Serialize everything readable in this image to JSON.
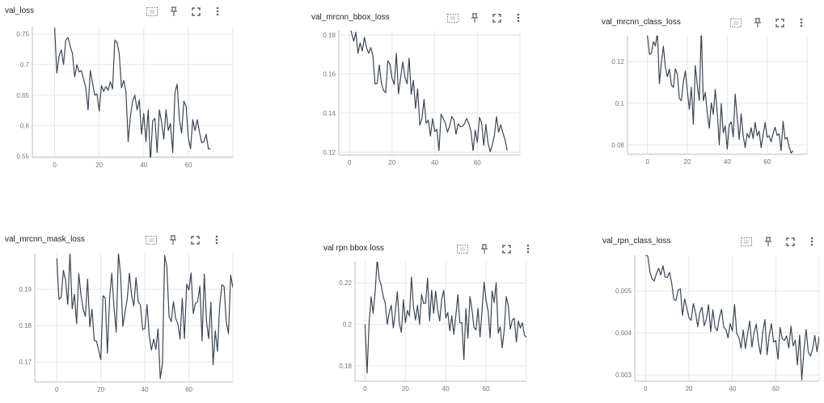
{
  "ui": {
    "line_color": "#3a4657",
    "grid_color": "#e6e6e6",
    "axis_color": "#bdbdbd",
    "tool_icons": [
      "data-selection-icon",
      "pin-icon",
      "fullscreen-icon",
      "more-vert-icon"
    ]
  },
  "chart_data": [
    {
      "type": "line",
      "title": "val_loss",
      "xlim": [
        -10,
        80
      ],
      "ylim": [
        0.548,
        0.762
      ],
      "x_ticks": [
        0,
        20,
        40,
        60
      ],
      "y_ticks": [
        0.55,
        0.6,
        0.65,
        0.7,
        0.75
      ],
      "x_tick_labels": [
        "0",
        "20",
        "40",
        "60"
      ],
      "y_tick_labels": [
        "0.55",
        "0.6",
        "0.65",
        "0.7",
        "0.75"
      ],
      "grid": true,
      "series": [
        {
          "values": [
            0.76,
            0.686,
            0.714,
            0.724,
            0.7,
            0.74,
            0.744,
            0.73,
            0.718,
            0.68,
            0.7,
            0.688,
            0.69,
            0.676,
            0.662,
            0.626,
            0.69,
            0.67,
            0.65,
            0.652,
            0.624,
            0.666,
            0.656,
            0.664,
            0.658,
            0.672,
            0.66,
            0.74,
            0.736,
            0.718,
            0.662,
            0.674,
            0.656,
            0.574,
            0.615,
            0.64,
            0.65,
            0.626,
            0.642,
            0.586,
            0.62,
            0.574,
            0.626,
            0.54,
            0.608,
            0.612,
            0.556,
            0.626,
            0.606,
            0.578,
            0.626,
            0.592,
            0.604,
            0.556,
            0.654,
            0.668,
            0.61,
            0.588,
            0.64,
            0.632,
            0.58,
            0.562,
            0.61,
            0.592,
            0.61,
            0.59,
            0.572,
            0.574,
            0.586,
            0.562,
            0.562
          ]
        }
      ]
    },
    {
      "type": "line",
      "title": "val_mrcnn_bbox_loss",
      "xlim": [
        -5,
        80
      ],
      "ylim": [
        0.1185,
        0.1822
      ],
      "x_ticks": [
        0,
        20,
        40,
        60
      ],
      "y_ticks": [
        0.12,
        0.14,
        0.16,
        0.18
      ],
      "x_tick_labels": [
        "0",
        "20",
        "40",
        "60"
      ],
      "y_tick_labels": [
        "0.12",
        "0.14",
        "0.16",
        "0.18"
      ],
      "grid": true,
      "series": [
        {
          "values": [
            0.1854,
            0.181,
            0.1768,
            0.1814,
            0.1706,
            0.176,
            0.1718,
            0.1788,
            0.1736,
            0.1706,
            0.1736,
            0.1694,
            0.155,
            0.1552,
            0.1646,
            0.1552,
            0.1516,
            0.1504,
            0.1668,
            0.165,
            0.1578,
            0.1546,
            0.1706,
            0.1498,
            0.1582,
            0.1662,
            0.1586,
            0.155,
            0.1682,
            0.1496,
            0.1568,
            0.1424,
            0.1524,
            0.1338,
            0.1372,
            0.147,
            0.1348,
            0.1364,
            0.1282,
            0.1372,
            0.1306,
            0.1316,
            0.1208,
            0.1394,
            0.1372,
            0.1348,
            0.1302,
            0.1334,
            0.1382,
            0.1366,
            0.1292,
            0.1346,
            0.133,
            0.1332,
            0.1346,
            0.1372,
            0.1346,
            0.1308,
            0.1208,
            0.1312,
            0.125,
            0.1378,
            0.1352,
            0.1234,
            0.1342,
            0.1248,
            0.1202,
            0.1236,
            0.1286,
            0.1382,
            0.1302,
            0.134,
            0.1298,
            0.1264,
            0.1208
          ]
        }
      ]
    },
    {
      "type": "line",
      "title": "val_mrcnn_class_loss",
      "xlim": [
        -10,
        80
      ],
      "ylim": [
        0.0755,
        0.1325
      ],
      "x_ticks": [
        0,
        20,
        40,
        60
      ],
      "y_ticks": [
        0.08,
        0.1,
        0.12
      ],
      "x_tick_labels": [
        "0",
        "20",
        "40",
        "60"
      ],
      "y_tick_labels": [
        "0.08",
        "0.1",
        "0.12"
      ],
      "grid": true,
      "series": [
        {
          "values": [
            0.1325,
            0.1235,
            0.124,
            0.1296,
            0.1275,
            0.1341,
            0.1093,
            0.1197,
            0.1274,
            0.1171,
            0.1127,
            0.1164,
            0.1087,
            0.1076,
            0.1165,
            0.1138,
            0.1023,
            0.1012,
            0.1102,
            0.1155,
            0.1058,
            0.0971,
            0.1077,
            0.0899,
            0.1181,
            0.1087,
            0.1013,
            0.1359,
            0.1012,
            0.1052,
            0.0953,
            0.088,
            0.1002,
            0.0947,
            0.1066,
            0.0957,
            0.08,
            0.0999,
            0.0857,
            0.0892,
            0.078,
            0.0897,
            0.091,
            0.0838,
            0.1044,
            0.0931,
            0.0826,
            0.0949,
            0.0844,
            0.0787,
            0.0855,
            0.0834,
            0.0882,
            0.083,
            0.0908,
            0.0844,
            0.0866,
            0.0787,
            0.0849,
            0.0908,
            0.0837,
            0.0844,
            0.0814,
            0.0855,
            0.0885,
            0.0845,
            0.0853,
            0.0772,
            0.0913,
            0.0828,
            0.0836,
            0.0791,
            0.0761,
            0.0772
          ]
        }
      ]
    },
    {
      "type": "line",
      "title": "val_mrcnn_mask_loss",
      "xlim": [
        -10,
        80
      ],
      "ylim": [
        0.1645,
        0.1998
      ],
      "x_ticks": [
        0,
        20,
        40,
        60
      ],
      "y_ticks": [
        0.17,
        0.18,
        0.19
      ],
      "x_tick_labels": [
        "0",
        "20",
        "40",
        "60"
      ],
      "y_tick_labels": [
        "0.17",
        "0.18",
        "0.19"
      ],
      "grid": true,
      "series": [
        {
          "values": [
            0.1985,
            0.1872,
            0.1878,
            0.1952,
            0.1924,
            0.1858,
            0.2,
            0.1846,
            0.1886,
            0.1805,
            0.1943,
            0.1884,
            0.1845,
            0.1825,
            0.1928,
            0.1797,
            0.1845,
            0.1759,
            0.1758,
            0.1733,
            0.1707,
            0.1882,
            0.1877,
            0.1724,
            0.1876,
            0.1944,
            0.1849,
            0.1782,
            0.2,
            0.1938,
            0.1798,
            0.1837,
            0.1873,
            0.1944,
            0.1883,
            0.1854,
            0.1932,
            0.1866,
            0.1857,
            0.1789,
            0.1792,
            0.1858,
            0.1772,
            0.1733,
            0.1763,
            0.1735,
            0.1791,
            0.1654,
            0.1696,
            0.1993,
            0.1961,
            0.1825,
            0.1811,
            0.1866,
            0.182,
            0.1805,
            0.1763,
            0.1875,
            0.1764,
            0.1914,
            0.1898,
            0.1945,
            0.1833,
            0.1861,
            0.1866,
            0.1909,
            0.1758,
            0.1942,
            0.1814,
            0.1764,
            0.1864,
            0.1692,
            0.1786,
            0.1729,
            0.1854,
            0.1912,
            0.1908,
            0.1809,
            0.1778,
            0.1939,
            0.1905,
            0.1904,
            0.1869
          ]
        }
      ]
    },
    {
      "type": "line",
      "title": "val rpn bbox loss",
      "xlim": [
        -5,
        80
      ],
      "ylim": [
        0.1726,
        0.2302
      ],
      "x_ticks": [
        0,
        20,
        40,
        60
      ],
      "y_ticks": [
        0.18,
        0.2,
        0.22
      ],
      "x_tick_labels": [
        "0",
        "20",
        "40",
        "60"
      ],
      "y_tick_labels": [
        "0.18",
        "0.2",
        "0.22"
      ],
      "grid": true,
      "series": [
        {
          "values": [
            0.2,
            0.1765,
            0.2007,
            0.2133,
            0.2053,
            0.2158,
            0.2315,
            0.2219,
            0.2188,
            0.2135,
            0.2101,
            0.2,
            0.2058,
            0.2092,
            0.1983,
            0.206,
            0.2157,
            0.2005,
            0.1962,
            0.2119,
            0.2008,
            0.2067,
            0.204,
            0.2228,
            0.2085,
            0.2021,
            0.2092,
            0.2,
            0.2144,
            0.2102,
            0.2102,
            0.2223,
            0.2016,
            0.2164,
            0.2053,
            0.216,
            0.2071,
            0.2016,
            0.2122,
            0.2164,
            0.2031,
            0.2057,
            0.1969,
            0.2041,
            0.1952,
            0.2041,
            0.2143,
            0.2007,
            0.2008,
            0.1829,
            0.2076,
            0.1933,
            0.2134,
            0.2071,
            0.1985,
            0.1973,
            0.2077,
            0.1939,
            0.2069,
            0.2204,
            0.2116,
            0.2064,
            0.1935,
            0.2161,
            0.2106,
            0.2201,
            0.1958,
            0.1988,
            0.1887,
            0.1973,
            0.2134,
            0.2091,
            0.1977,
            0.2021,
            0.2029,
            0.1915,
            0.2016,
            0.1982,
            0.2008,
            0.1948,
            0.1937,
            0.1968,
            0.1964,
            0.1984
          ]
        }
      ]
    },
    {
      "type": "line",
      "title": "val_rpn_class_loss",
      "xlim": [
        -5,
        80
      ],
      "ylim": [
        0.00285,
        0.00585
      ],
      "x_ticks": [
        0,
        20,
        40,
        60
      ],
      "y_ticks": [
        0.003,
        0.004,
        0.005
      ],
      "x_tick_labels": [
        "0",
        "20",
        "40",
        "60"
      ],
      "y_tick_labels": [
        "0.003",
        "0.004",
        "0.005"
      ],
      "grid": true,
      "series": [
        {
          "values": [
            0.00585,
            0.00583,
            0.00545,
            0.00528,
            0.00524,
            0.00541,
            0.00554,
            0.00538,
            0.0056,
            0.00533,
            0.00532,
            0.00544,
            0.00519,
            0.0048,
            0.00477,
            0.00502,
            0.00505,
            0.00442,
            0.00481,
            0.00459,
            0.00436,
            0.0043,
            0.0047,
            0.00449,
            0.00415,
            0.00449,
            0.00461,
            0.00417,
            0.00433,
            0.00467,
            0.00403,
            0.00455,
            0.00414,
            0.00405,
            0.00436,
            0.00456,
            0.00414,
            0.00408,
            0.00388,
            0.00422,
            0.00404,
            0.00468,
            0.00399,
            0.00389,
            0.00363,
            0.00407,
            0.00363,
            0.00398,
            0.00428,
            0.00366,
            0.00401,
            0.00421,
            0.00376,
            0.00349,
            0.00402,
            0.00432,
            0.00348,
            0.00395,
            0.00422,
            0.00378,
            0.00382,
            0.00337,
            0.00413,
            0.00386,
            0.00382,
            0.00393,
            0.00364,
            0.00416,
            0.00369,
            0.00383,
            0.00324,
            0.00395,
            0.00288,
            0.0036,
            0.00408,
            0.00354,
            0.00345,
            0.00362,
            0.00394,
            0.00355,
            0.00391,
            0.00339,
            0.0036,
            0.00328,
            0.00371,
            0.00374,
            0.0037,
            0.00314
          ]
        }
      ]
    }
  ]
}
